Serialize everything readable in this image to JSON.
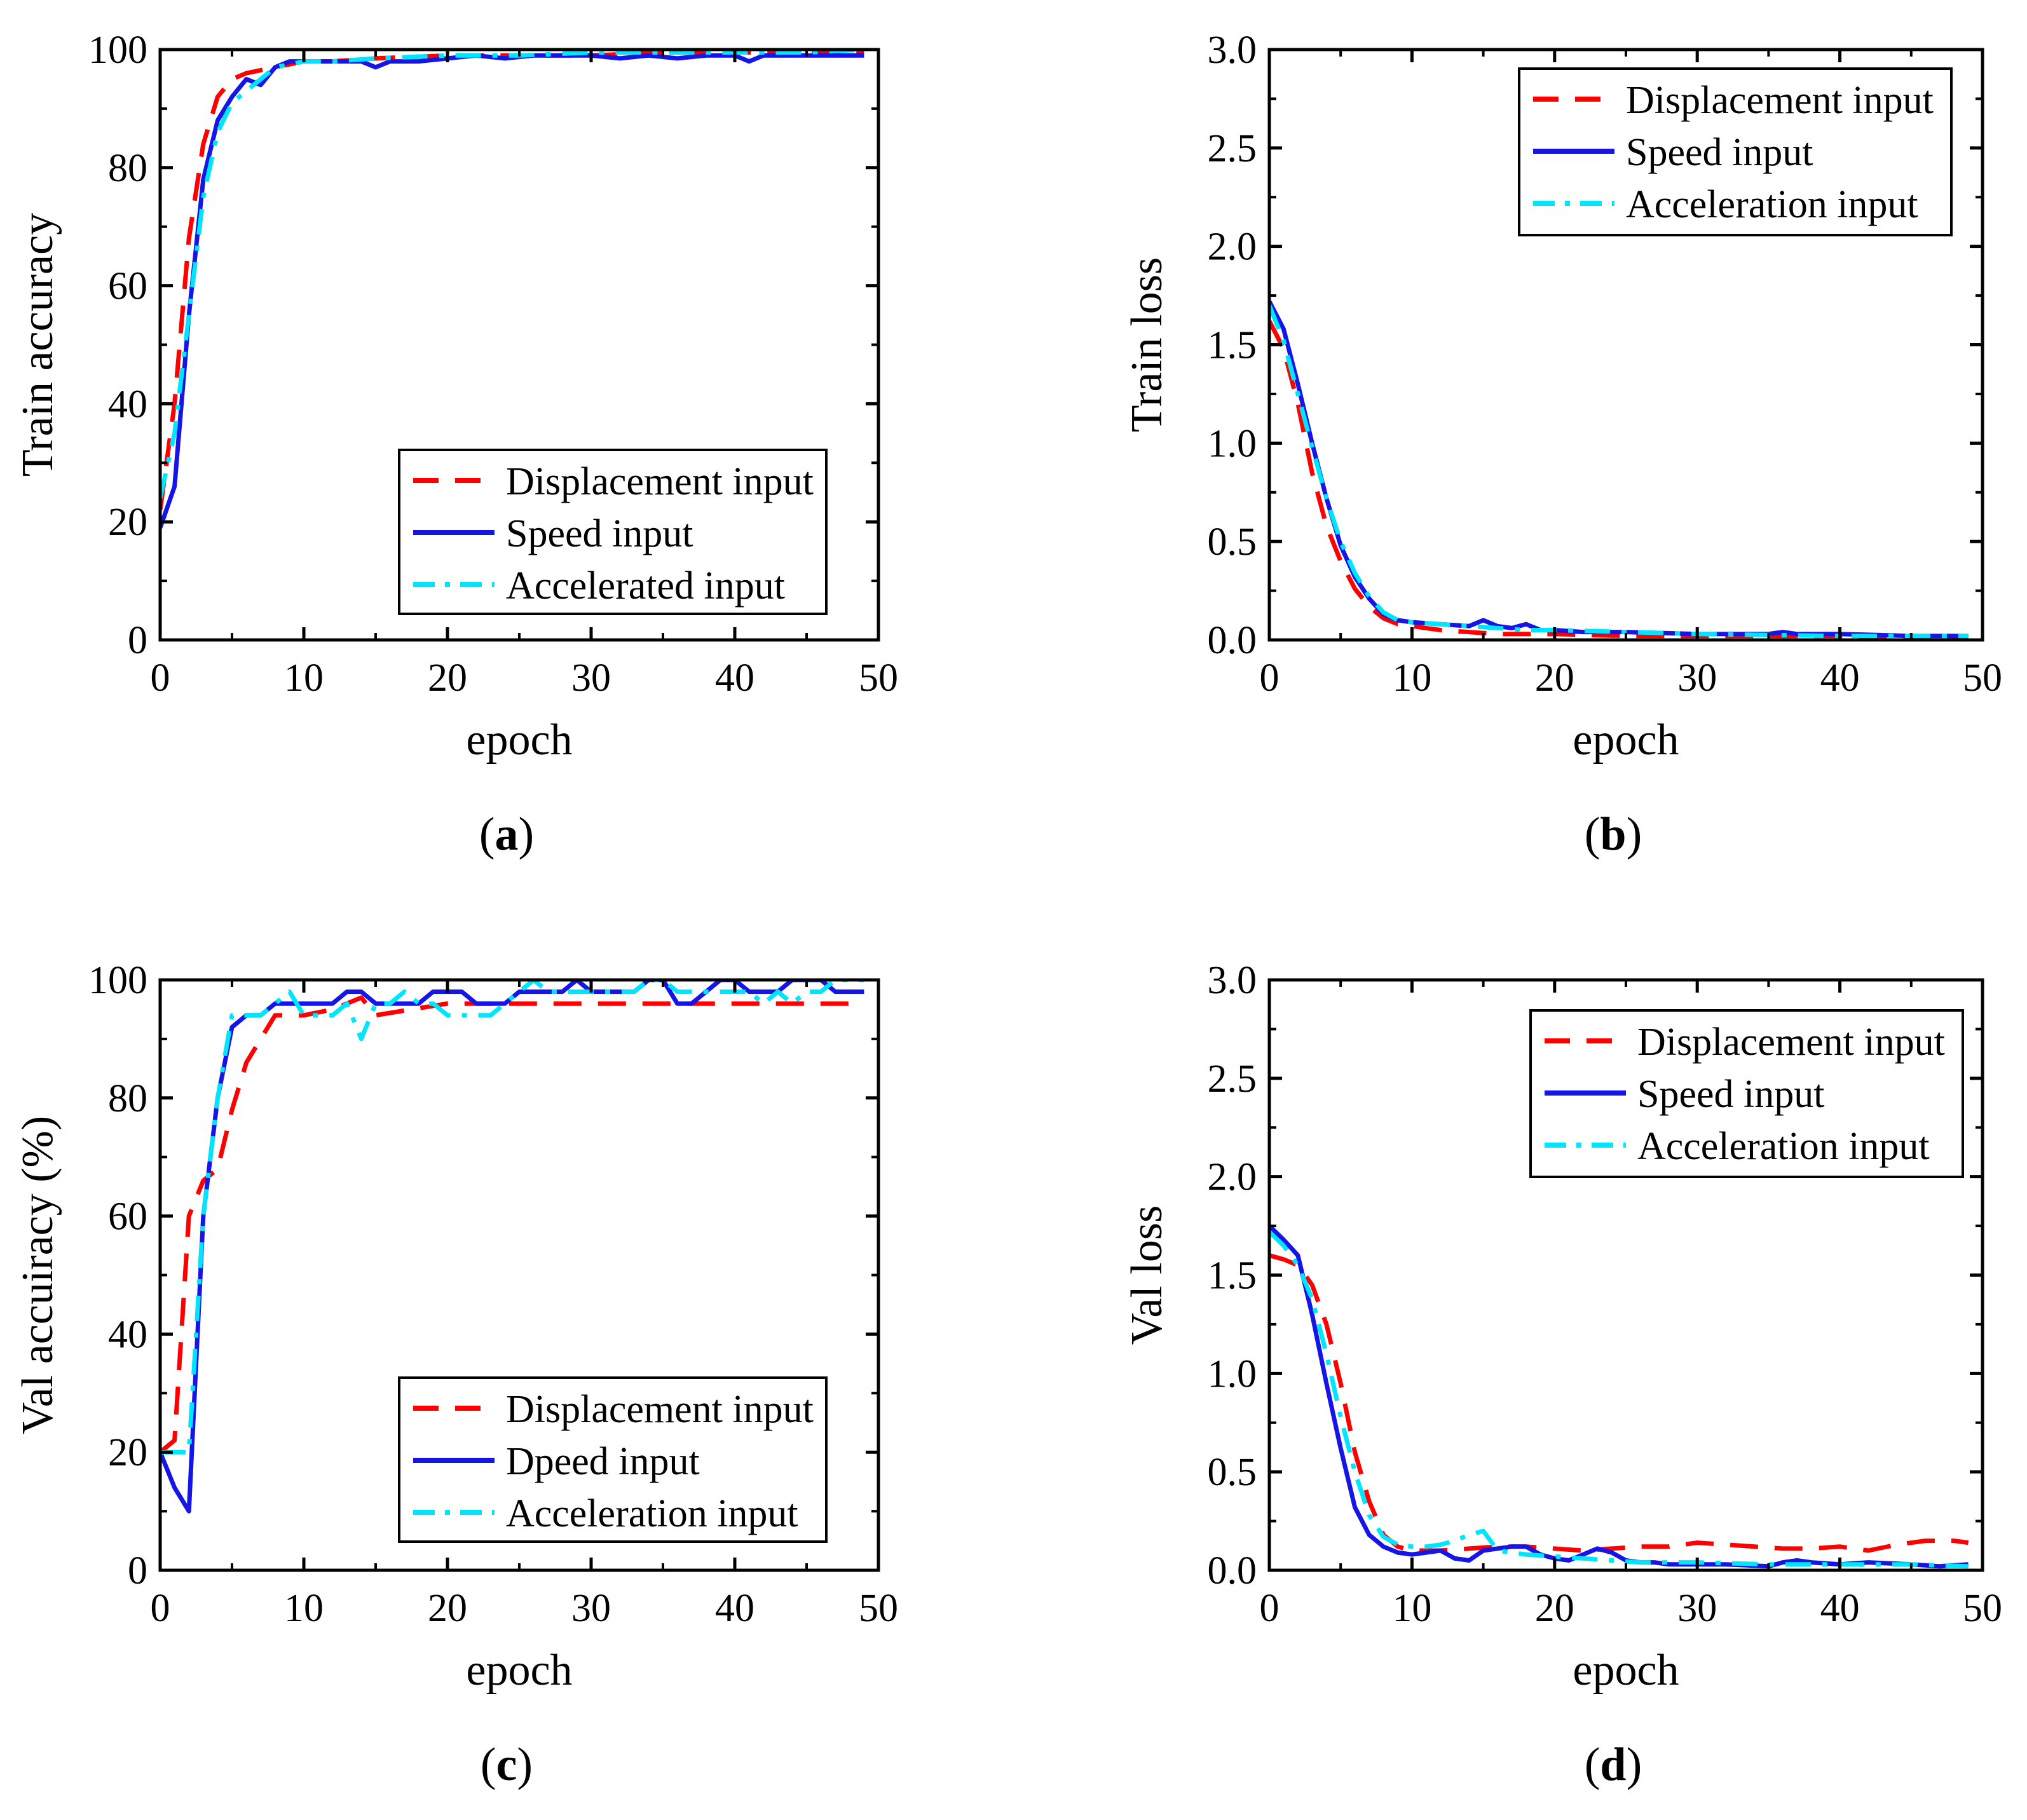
{
  "colors": {
    "red": "#ff0000",
    "blue": "#1515e6",
    "cyan": "#00e5ff",
    "axis": "#000000"
  },
  "chart_data": [
    {
      "type": "line",
      "panel_label": "a",
      "xlabel": "epoch",
      "ylabel": "Train accuracy",
      "xlim": [
        0,
        50
      ],
      "ylim": [
        0,
        100
      ],
      "xticks": [
        0,
        10,
        20,
        30,
        40,
        50
      ],
      "yticks": [
        0,
        20,
        40,
        60,
        80,
        100
      ],
      "xtick_labels": [
        "0",
        "10",
        "20",
        "30",
        "40",
        "50"
      ],
      "ytick_labels": [
        "0",
        "20",
        "40",
        "60",
        "80",
        "100"
      ],
      "legend_position": "bottom-right",
      "series": [
        {
          "name": "Displacement input",
          "style": "dashed",
          "color": "red",
          "x": [
            0,
            1,
            2,
            3,
            4,
            5,
            6,
            8,
            10,
            12,
            15,
            20,
            25,
            30,
            35,
            40,
            45,
            49
          ],
          "y": [
            22,
            40,
            68,
            84,
            92,
            95,
            96,
            97,
            98,
            98,
            98.5,
            99,
            99,
            99,
            99.5,
            99.5,
            99.5,
            99.5
          ]
        },
        {
          "name": "Speed input",
          "style": "solid",
          "color": "blue",
          "x": [
            0,
            1,
            2,
            3,
            4,
            5,
            6,
            7,
            8,
            9,
            10,
            12,
            14,
            15,
            16,
            18,
            20,
            22,
            24,
            26,
            28,
            30,
            32,
            34,
            36,
            38,
            40,
            41,
            42,
            45,
            49
          ],
          "y": [
            19,
            26,
            55,
            78,
            88,
            92,
            95,
            94,
            97,
            98,
            98,
            98,
            98,
            97,
            98,
            98,
            98.5,
            99,
            98.5,
            99,
            99,
            99,
            98.5,
            99,
            98.5,
            99,
            99,
            98,
            99,
            99,
            99
          ]
        },
        {
          "name": "Accelerated input",
          "style": "dashdot",
          "color": "cyan",
          "x": [
            0,
            1,
            2,
            3,
            4,
            5,
            6,
            7,
            8,
            10,
            12,
            15,
            20,
            25,
            30,
            35,
            40,
            45,
            49
          ],
          "y": [
            24,
            35,
            55,
            75,
            86,
            91,
            93,
            95,
            97,
            98,
            98,
            98.5,
            99,
            99,
            99.5,
            99.5,
            99.5,
            99.5,
            100
          ]
        }
      ]
    },
    {
      "type": "line",
      "panel_label": "b",
      "xlabel": "epoch",
      "ylabel": "Train loss",
      "xlim": [
        0,
        50
      ],
      "ylim": [
        0,
        3
      ],
      "xticks": [
        0,
        10,
        20,
        30,
        40,
        50
      ],
      "yticks": [
        0,
        0.5,
        1,
        1.5,
        2,
        2.5,
        3
      ],
      "xtick_labels": [
        "0",
        "10",
        "20",
        "30",
        "40",
        "50"
      ],
      "ytick_labels": [
        "0.0",
        "0.5",
        "1.0",
        "1.5",
        "2.0",
        "2.5",
        "3.0"
      ],
      "legend_position": "top-right",
      "series": [
        {
          "name": "Displacement input",
          "style": "dashed",
          "color": "red",
          "x": [
            0,
            1,
            2,
            3,
            4,
            5,
            6,
            7,
            8,
            9,
            10,
            12,
            14,
            16,
            18,
            20,
            25,
            30,
            40,
            49
          ],
          "y": [
            1.62,
            1.48,
            1.2,
            0.85,
            0.58,
            0.4,
            0.26,
            0.17,
            0.11,
            0.08,
            0.07,
            0.05,
            0.04,
            0.03,
            0.03,
            0.03,
            0.02,
            0.02,
            0.02,
            0.01
          ]
        },
        {
          "name": "Speed input",
          "style": "solid",
          "color": "blue",
          "x": [
            0,
            1,
            2,
            3,
            4,
            5,
            6,
            7,
            8,
            9,
            10,
            12,
            14,
            15,
            16,
            17,
            18,
            19,
            20,
            22,
            25,
            30,
            35,
            36,
            37,
            40,
            45,
            49
          ],
          "y": [
            1.72,
            1.58,
            1.3,
            1.0,
            0.72,
            0.48,
            0.32,
            0.21,
            0.13,
            0.1,
            0.09,
            0.08,
            0.07,
            0.1,
            0.07,
            0.06,
            0.08,
            0.05,
            0.05,
            0.04,
            0.04,
            0.03,
            0.03,
            0.04,
            0.03,
            0.03,
            0.02,
            0.02
          ]
        },
        {
          "name": "Acceleration input",
          "style": "dashdot",
          "color": "cyan",
          "x": [
            0,
            1,
            2,
            3,
            4,
            5,
            6,
            7,
            8,
            9,
            10,
            12,
            14,
            16,
            18,
            20,
            25,
            30,
            40,
            49
          ],
          "y": [
            1.7,
            1.52,
            1.25,
            0.98,
            0.72,
            0.5,
            0.34,
            0.22,
            0.14,
            0.1,
            0.09,
            0.08,
            0.07,
            0.06,
            0.05,
            0.05,
            0.04,
            0.03,
            0.02,
            0.02
          ]
        }
      ]
    },
    {
      "type": "line",
      "panel_label": "c",
      "xlabel": "epoch",
      "ylabel": "Val accuiracy (%)",
      "xlim": [
        0,
        50
      ],
      "ylim": [
        0,
        100
      ],
      "xticks": [
        0,
        10,
        20,
        30,
        40,
        50
      ],
      "yticks": [
        0,
        20,
        40,
        60,
        80,
        100
      ],
      "xtick_labels": [
        "0",
        "10",
        "20",
        "30",
        "40",
        "50"
      ],
      "ytick_labels": [
        "0",
        "20",
        "40",
        "60",
        "80",
        "100"
      ],
      "legend_position": "bottom-right",
      "series": [
        {
          "name": "Displacement input",
          "style": "dashed",
          "color": "red",
          "x": [
            0,
            1,
            2,
            3,
            4,
            5,
            6,
            7,
            8,
            10,
            12,
            14,
            15,
            20,
            25,
            30,
            35,
            40,
            45,
            49
          ],
          "y": [
            20,
            22,
            60,
            66,
            68,
            78,
            86,
            90,
            94,
            94,
            95,
            97,
            94,
            96,
            96,
            96,
            96,
            96,
            96,
            96
          ]
        },
        {
          "name": "Dpeed input",
          "style": "solid",
          "color": "blue",
          "x": [
            0,
            1,
            2,
            3,
            4,
            5,
            6,
            7,
            8,
            9,
            10,
            11,
            12,
            13,
            14,
            15,
            16,
            17,
            18,
            19,
            20,
            21,
            22,
            23,
            24,
            25,
            26,
            27,
            28,
            29,
            30,
            31,
            32,
            33,
            34,
            35,
            36,
            37,
            38,
            39,
            40,
            41,
            42,
            43,
            44,
            45,
            46,
            47,
            48,
            49
          ],
          "y": [
            20,
            14,
            10,
            60,
            80,
            92,
            94,
            94,
            96,
            96,
            96,
            96,
            96,
            98,
            98,
            96,
            96,
            96,
            96,
            98,
            98,
            98,
            96,
            96,
            96,
            98,
            98,
            98,
            98,
            100,
            98,
            98,
            98,
            98,
            100,
            100,
            96,
            96,
            98,
            100,
            100,
            98,
            98,
            98,
            100,
            100,
            100,
            98,
            98,
            98
          ]
        },
        {
          "name": "Acceleration input",
          "style": "dashdot",
          "color": "cyan",
          "x": [
            0,
            1,
            2,
            3,
            4,
            5,
            6,
            7,
            8,
            9,
            10,
            11,
            12,
            13,
            14,
            15,
            16,
            17,
            18,
            19,
            20,
            21,
            22,
            23,
            24,
            25,
            26,
            27,
            28,
            29,
            30,
            31,
            32,
            33,
            34,
            35,
            36,
            37,
            38,
            39,
            40,
            41,
            42,
            43,
            44,
            45,
            46,
            47,
            48,
            49
          ],
          "y": [
            20,
            20,
            20,
            60,
            80,
            94,
            94,
            94,
            96,
            98,
            94,
            94,
            94,
            96,
            90,
            96,
            96,
            98,
            96,
            96,
            94,
            94,
            94,
            94,
            96,
            98,
            100,
            98,
            98,
            98,
            98,
            98,
            98,
            98,
            100,
            100,
            98,
            98,
            98,
            98,
            98,
            98,
            96,
            98,
            96,
            98,
            98,
            100,
            100,
            100
          ]
        }
      ]
    },
    {
      "type": "line",
      "panel_label": "d",
      "xlabel": "epoch",
      "ylabel": "Val loss",
      "xlim": [
        0,
        50
      ],
      "ylim": [
        0,
        3
      ],
      "xticks": [
        0,
        10,
        20,
        30,
        40,
        50
      ],
      "yticks": [
        0,
        0.5,
        1,
        1.5,
        2,
        2.5,
        3
      ],
      "xtick_labels": [
        "0",
        "10",
        "20",
        "30",
        "40",
        "50"
      ],
      "ytick_labels": [
        "0.0",
        "0.5",
        "1.0",
        "1.5",
        "2.0",
        "2.5",
        "3.0"
      ],
      "legend_position": "top-right",
      "series": [
        {
          "name": "Displacement input",
          "style": "dashed",
          "color": "red",
          "x": [
            0,
            1,
            2,
            3,
            4,
            5,
            6,
            7,
            8,
            9,
            10,
            12,
            14,
            16,
            18,
            20,
            22,
            24,
            26,
            28,
            30,
            32,
            34,
            36,
            38,
            40,
            42,
            44,
            46,
            48,
            49
          ],
          "y": [
            1.6,
            1.58,
            1.55,
            1.45,
            1.25,
            0.95,
            0.6,
            0.35,
            0.18,
            0.12,
            0.1,
            0.1,
            0.11,
            0.12,
            0.12,
            0.11,
            0.1,
            0.11,
            0.12,
            0.12,
            0.14,
            0.13,
            0.12,
            0.11,
            0.11,
            0.12,
            0.1,
            0.13,
            0.15,
            0.15,
            0.14
          ]
        },
        {
          "name": "Speed input",
          "style": "solid",
          "color": "blue",
          "x": [
            0,
            1,
            2,
            3,
            4,
            5,
            6,
            7,
            8,
            9,
            10,
            11,
            12,
            13,
            14,
            15,
            16,
            17,
            18,
            19,
            20,
            21,
            22,
            23,
            24,
            25,
            26,
            27,
            28,
            30,
            32,
            35,
            36,
            37,
            38,
            40,
            42,
            45,
            47,
            49
          ],
          "y": [
            1.75,
            1.68,
            1.6,
            1.3,
            0.95,
            0.62,
            0.32,
            0.18,
            0.12,
            0.09,
            0.08,
            0.09,
            0.1,
            0.06,
            0.05,
            0.1,
            0.11,
            0.12,
            0.12,
            0.08,
            0.06,
            0.05,
            0.08,
            0.11,
            0.09,
            0.05,
            0.04,
            0.04,
            0.03,
            0.03,
            0.03,
            0.02,
            0.04,
            0.05,
            0.04,
            0.03,
            0.04,
            0.03,
            0.02,
            0.03
          ]
        },
        {
          "name": "Acceleration input",
          "style": "dashdot",
          "color": "cyan",
          "x": [
            0,
            1,
            2,
            3,
            4,
            5,
            6,
            7,
            8,
            9,
            10,
            11,
            12,
            13,
            14,
            15,
            16,
            17,
            18,
            20,
            22,
            24,
            26,
            28,
            30,
            35,
            40,
            45,
            49
          ],
          "y": [
            1.72,
            1.65,
            1.55,
            1.38,
            1.1,
            0.78,
            0.5,
            0.28,
            0.17,
            0.13,
            0.12,
            0.12,
            0.13,
            0.15,
            0.18,
            0.2,
            0.1,
            0.09,
            0.08,
            0.07,
            0.06,
            0.05,
            0.04,
            0.04,
            0.04,
            0.03,
            0.03,
            0.03,
            0.02
          ]
        }
      ]
    }
  ]
}
